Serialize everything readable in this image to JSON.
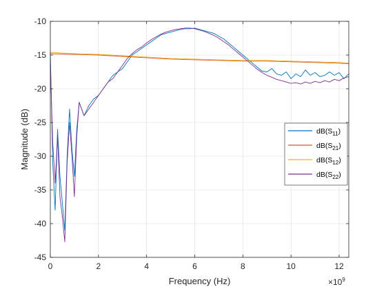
{
  "chart_data": {
    "type": "line",
    "title": "",
    "xlabel": "Frequency (Hz)",
    "ylabel": "Magnitude (dB)",
    "x_exponent_label": "×10",
    "x_exponent_power": "9",
    "xlim": [
      0,
      12.4
    ],
    "ylim": [
      -45,
      -10
    ],
    "x_ticks": [
      0,
      2,
      4,
      6,
      8,
      10,
      12
    ],
    "y_ticks": [
      -45,
      -40,
      -35,
      -30,
      -25,
      -20,
      -15,
      -10
    ],
    "x_tick_labels": [
      "0",
      "2",
      "4",
      "6",
      "8",
      "10",
      "12"
    ],
    "y_tick_labels": [
      "-45",
      "-40",
      "-35",
      "-30",
      "-25",
      "-20",
      "-15",
      "-10"
    ],
    "grid": true,
    "legend_position": "right",
    "legend": [
      {
        "label": "dB(S",
        "sub": "11",
        "close": ")",
        "color": "#0072BD"
      },
      {
        "label": "dB(S",
        "sub": "21",
        "close": ")",
        "color": "#D95319"
      },
      {
        "label": "dB(S",
        "sub": "12",
        "close": ")",
        "color": "#EDB120"
      },
      {
        "label": "dB(S",
        "sub": "22",
        "close": ")",
        "color": "#7E2F8E"
      }
    ],
    "series": [
      {
        "name": "dB(S11)",
        "color": "#0072BD",
        "x": [
          0,
          0.1,
          0.2,
          0.3,
          0.4,
          0.5,
          0.6,
          0.7,
          0.8,
          0.9,
          1.0,
          1.1,
          1.2,
          1.4,
          1.6,
          1.8,
          2.0,
          2.2,
          2.4,
          2.6,
          2.8,
          3.0,
          3.2,
          3.4,
          3.6,
          3.8,
          4.0,
          4.2,
          4.4,
          4.6,
          4.8,
          5.0,
          5.2,
          5.4,
          5.6,
          5.8,
          6.0,
          6.2,
          6.4,
          6.6,
          6.8,
          7.0,
          7.2,
          7.4,
          7.6,
          7.8,
          8.0,
          8.2,
          8.4,
          8.6,
          8.8,
          9.0,
          9.2,
          9.4,
          9.6,
          9.8,
          10.0,
          10.2,
          10.4,
          10.6,
          10.8,
          11.0,
          11.2,
          11.4,
          11.6,
          11.8,
          12.0,
          12.2,
          12.4
        ],
        "y": [
          -14.5,
          -31,
          -38,
          -26,
          -33,
          -37,
          -41,
          -30,
          -23,
          -29,
          -33,
          -26,
          -22,
          -24,
          -22.5,
          -21.5,
          -21,
          -20,
          -19,
          -18,
          -17.5,
          -17,
          -16,
          -15,
          -14.5,
          -14,
          -13.5,
          -13,
          -12.5,
          -12,
          -11.8,
          -11.6,
          -11.4,
          -11.2,
          -11.1,
          -11.1,
          -11.0,
          -11.2,
          -11.4,
          -11.6,
          -11.8,
          -12.2,
          -12.6,
          -13.2,
          -13.8,
          -14.4,
          -15.0,
          -15.6,
          -16.2,
          -16.8,
          -17.4,
          -17.5,
          -17.0,
          -17.8,
          -18.0,
          -17.5,
          -18.5,
          -17.8,
          -18.2,
          -17.2,
          -18.0,
          -17.6,
          -18.2,
          -18.0,
          -17.5,
          -18.0,
          -17.6,
          -18.5,
          -17.8
        ]
      },
      {
        "name": "dB(S21)",
        "color": "#D95319",
        "x": [
          0,
          1,
          2,
          3,
          4,
          5,
          6,
          7,
          8,
          9,
          10,
          11,
          12,
          12.4
        ],
        "y": [
          -14.8,
          -14.9,
          -15.0,
          -15.2,
          -15.4,
          -15.6,
          -15.7,
          -15.8,
          -15.9,
          -15.9,
          -16.0,
          -16.1,
          -16.2,
          -16.3
        ]
      },
      {
        "name": "dB(S12)",
        "color": "#EDB120",
        "x": [
          0,
          1,
          2,
          3,
          4,
          5,
          6,
          7,
          8,
          9,
          10,
          11,
          12,
          12.4
        ],
        "y": [
          -14.6,
          -14.8,
          -14.9,
          -15.1,
          -15.3,
          -15.5,
          -15.6,
          -15.7,
          -15.8,
          -15.8,
          -15.9,
          -16.0,
          -16.1,
          -16.2
        ]
      },
      {
        "name": "dB(S22)",
        "color": "#7E2F8E",
        "x": [
          0,
          0.1,
          0.2,
          0.3,
          0.4,
          0.5,
          0.6,
          0.7,
          0.8,
          0.9,
          1.0,
          1.1,
          1.2,
          1.4,
          1.6,
          1.8,
          2.0,
          2.2,
          2.4,
          2.6,
          2.8,
          3.0,
          3.2,
          3.4,
          3.6,
          3.8,
          4.0,
          4.2,
          4.4,
          4.6,
          4.8,
          5.0,
          5.2,
          5.4,
          5.6,
          5.8,
          6.0,
          6.2,
          6.4,
          6.6,
          6.8,
          7.0,
          7.2,
          7.4,
          7.6,
          7.8,
          8.0,
          8.2,
          8.4,
          8.6,
          8.8,
          9.0,
          9.2,
          9.4,
          9.6,
          9.8,
          10.0,
          10.2,
          10.4,
          10.6,
          10.8,
          11.0,
          11.2,
          11.4,
          11.6,
          11.8,
          12.0,
          12.2,
          12.4
        ],
        "y": [
          -16,
          -28,
          -34,
          -27,
          -36,
          -39,
          -42.7,
          -31,
          -25,
          -30,
          -36,
          -27,
          -22,
          -24,
          -23,
          -22,
          -21,
          -20,
          -19,
          -18.5,
          -17.5,
          -16.5,
          -15.5,
          -14.8,
          -14.2,
          -13.8,
          -13.2,
          -12.7,
          -12.3,
          -11.9,
          -11.6,
          -11.4,
          -11.2,
          -11.1,
          -11.0,
          -11.0,
          -11.1,
          -11.3,
          -11.5,
          -11.8,
          -12.1,
          -12.5,
          -13.0,
          -13.5,
          -14.1,
          -14.7,
          -15.3,
          -15.9,
          -16.5,
          -17.1,
          -17.6,
          -18.0,
          -18.3,
          -18.6,
          -18.8,
          -19.0,
          -19.2,
          -19.1,
          -19.3,
          -19.0,
          -19.2,
          -18.9,
          -19.1,
          -18.8,
          -19.0,
          -18.6,
          -18.8,
          -18.4,
          -18.2
        ]
      }
    ]
  }
}
